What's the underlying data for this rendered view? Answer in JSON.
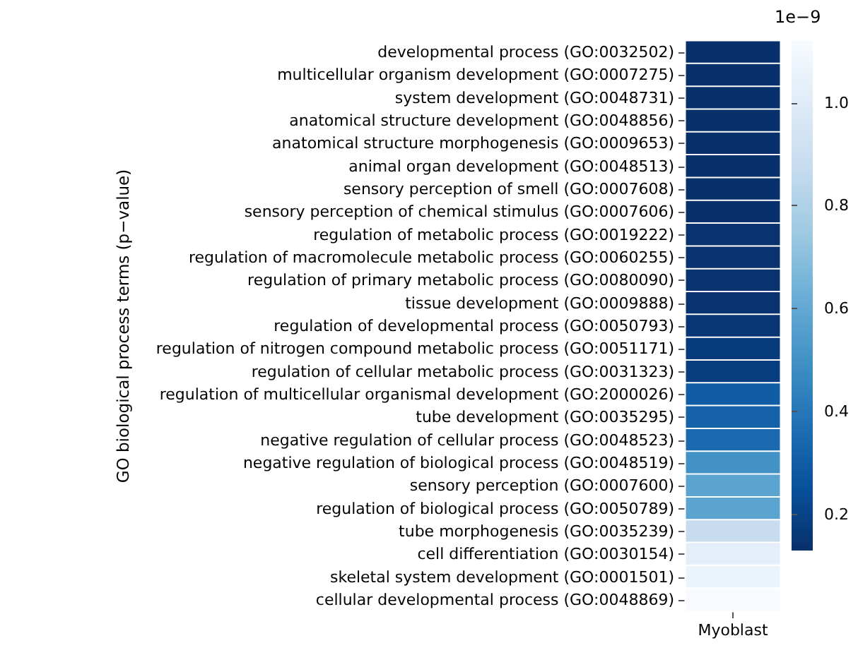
{
  "chart_data": {
    "type": "heatmap",
    "ylabel": "GO biological process terms (p−value)",
    "categories": [
      "Myoblast"
    ],
    "y_categories": [
      "developmental process (GO:0032502)",
      "multicellular organism development (GO:0007275)",
      "system development (GO:0048731)",
      "anatomical structure development (GO:0048856)",
      "anatomical structure morphogenesis (GO:0009653)",
      "animal organ development (GO:0048513)",
      "sensory perception of smell (GO:0007608)",
      "sensory perception of chemical stimulus (GO:0007606)",
      "regulation of metabolic process (GO:0019222)",
      "regulation of macromolecule metabolic process (GO:0060255)",
      "regulation of primary metabolic process (GO:0080090)",
      "tissue development (GO:0009888)",
      "regulation of developmental process (GO:0050793)",
      "regulation of nitrogen compound metabolic process (GO:0051171)",
      "regulation of cellular metabolic process (GO:0031323)",
      "regulation of multicellular organismal development (GO:2000026)",
      "tube development (GO:0035295)",
      "negative regulation of cellular process (GO:0048523)",
      "negative regulation of biological process (GO:0048519)",
      "sensory perception (GO:0007600)",
      "regulation of biological process (GO:0050789)",
      "tube morphogenesis (GO:0035239)",
      "cell differentiation (GO:0030154)",
      "skeletal system development (GO:0001501)",
      "cellular developmental process (GO:0048869)"
    ],
    "cells": [
      [
        0.13
      ],
      [
        0.13
      ],
      [
        0.13
      ],
      [
        0.13
      ],
      [
        0.13
      ],
      [
        0.13
      ],
      [
        0.13
      ],
      [
        0.13
      ],
      [
        0.14
      ],
      [
        0.14
      ],
      [
        0.14
      ],
      [
        0.14
      ],
      [
        0.15
      ],
      [
        0.17
      ],
      [
        0.18
      ],
      [
        0.3
      ],
      [
        0.32
      ],
      [
        0.35
      ],
      [
        0.5
      ],
      [
        0.58
      ],
      [
        0.58
      ],
      [
        0.88
      ],
      [
        1.02
      ],
      [
        1.06
      ],
      [
        1.12
      ]
    ],
    "clim": [
      0.13,
      1.12
    ],
    "cticks": [
      0.2,
      0.4,
      0.6,
      0.8,
      {
        "value": 1,
        "label": "1.0"
      }
    ],
    "annotations": [
      "1e−9"
    ]
  }
}
